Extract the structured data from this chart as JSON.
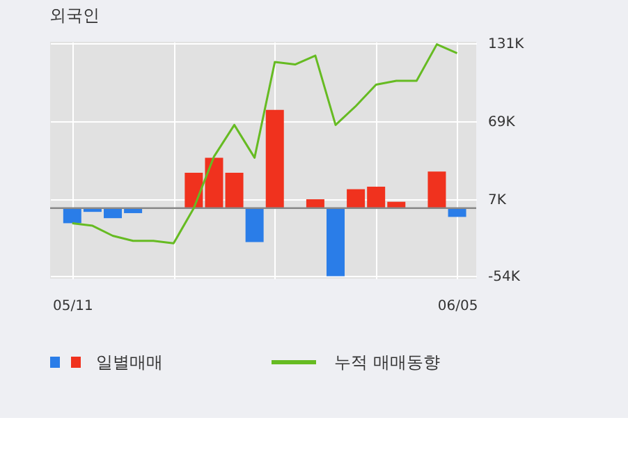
{
  "chart_data": {
    "type": "bar",
    "title": "외국인",
    "categories": [
      "05/11",
      null,
      null,
      null,
      null,
      null,
      null,
      null,
      null,
      null,
      null,
      null,
      null,
      null,
      null,
      null,
      null,
      null,
      null,
      "06/05"
    ],
    "series": [
      {
        "name": "일별매매",
        "values": [
          -12,
          -3,
          -8,
          -4,
          0,
          0,
          28,
          40,
          28,
          -27,
          78,
          0,
          7,
          -54,
          15,
          17,
          5,
          0,
          29,
          -7
        ],
        "colors": [
          "#2a7de8",
          "#2a7de8",
          "#2a7de8",
          "#2a7de8",
          "#2a7de8",
          "#2a7de8",
          "#f0321e",
          "#f0321e",
          "#f0321e",
          "#2a7de8",
          "#f0321e",
          "#2a7de8",
          "#f0321e",
          "#2a7de8",
          "#f0321e",
          "#f0321e",
          "#f0321e",
          "#2a7de8",
          "#f0321e",
          "#2a7de8"
        ]
      },
      {
        "name": "누적 매매동향",
        "type": "line",
        "color": "#66bb22",
        "values": [
          -12,
          -14,
          -22,
          -26,
          -26,
          -28,
          0,
          41,
          66,
          40,
          116,
          114,
          121,
          66,
          81,
          98,
          101,
          101,
          130,
          123
        ]
      }
    ],
    "ylim": [
      -56,
      132
    ],
    "yticks": [
      {
        "value": -54,
        "label": "-54K"
      },
      {
        "value": 7,
        "label": "7K"
      },
      {
        "value": 69,
        "label": "69K"
      },
      {
        "value": 131,
        "label": "131K"
      }
    ],
    "ref_lines": [
      {
        "axis": "y",
        "value": 0,
        "color": "#888888"
      }
    ],
    "grid": true,
    "legend": "bottom"
  }
}
